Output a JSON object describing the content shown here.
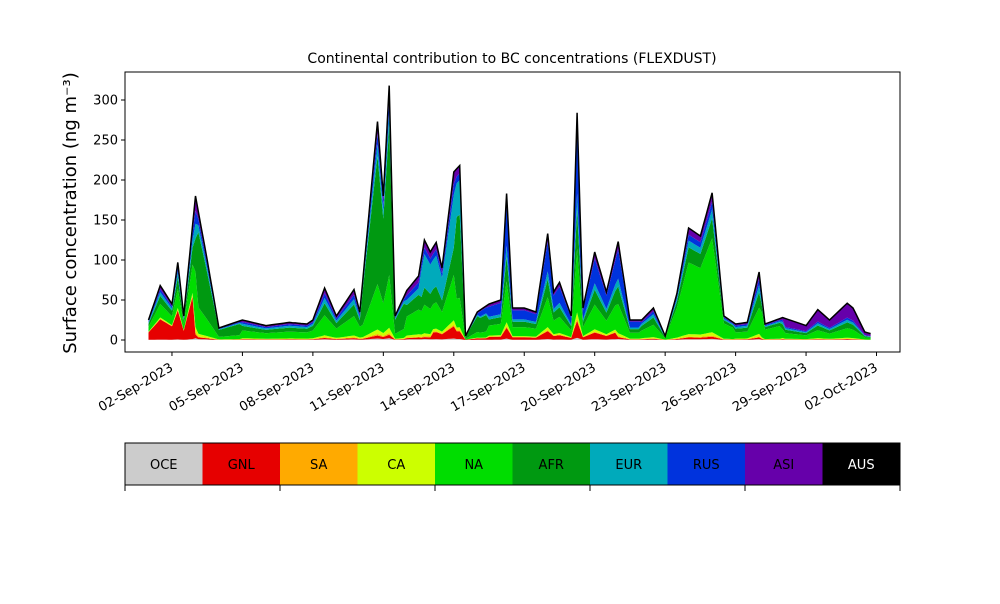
{
  "chart_data": {
    "type": "area",
    "title": "Continental contribution to BC concentrations (FLEXDUST)",
    "ylabel": "Surface concentration (ng m⁻³)",
    "xlabel": "",
    "x_start": "2023-09-01",
    "x_end": "2023-10-01",
    "xlim": [
      "2023-08-31",
      "2023-10-03"
    ],
    "ylim": [
      -15,
      335
    ],
    "stacked": true,
    "yticks": [
      0,
      50,
      100,
      150,
      200,
      250,
      300
    ],
    "xticks": [
      "02-Sep-2023",
      "05-Sep-2023",
      "08-Sep-2023",
      "11-Sep-2023",
      "14-Sep-2023",
      "17-Sep-2023",
      "20-Sep-2023",
      "23-Sep-2023",
      "26-Sep-2023",
      "29-Sep-2023",
      "02-Oct-2023"
    ],
    "xtick_dates": [
      "2023-09-02",
      "2023-09-05",
      "2023-09-08",
      "2023-09-11",
      "2023-09-14",
      "2023-09-17",
      "2023-09-20",
      "2023-09-23",
      "2023-09-26",
      "2023-09-29",
      "2023-10-02"
    ],
    "total_peaks": [
      [
        "2023-09-01",
        25
      ],
      [
        "2023-09-01T12",
        68
      ],
      [
        "2023-09-02",
        45
      ],
      [
        "2023-09-02T06",
        97
      ],
      [
        "2023-09-02T12",
        30
      ],
      [
        "2023-09-03",
        180
      ],
      [
        "2023-09-03T12",
        100
      ],
      [
        "2023-09-04",
        15
      ],
      [
        "2023-09-05",
        25
      ],
      [
        "2023-09-06",
        18
      ],
      [
        "2023-09-07",
        22
      ],
      [
        "2023-09-07T18",
        20
      ],
      [
        "2023-09-08",
        25
      ],
      [
        "2023-09-08T12",
        65
      ],
      [
        "2023-09-09",
        30
      ],
      [
        "2023-09-09T18",
        63
      ],
      [
        "2023-09-10",
        35
      ],
      [
        "2023-09-10T18",
        273
      ],
      [
        "2023-09-11",
        180
      ],
      [
        "2023-09-11T06",
        318
      ],
      [
        "2023-09-11T12",
        30
      ],
      [
        "2023-09-12",
        62
      ],
      [
        "2023-09-12T12",
        80
      ],
      [
        "2023-09-12T18",
        125
      ],
      [
        "2023-09-13",
        110
      ],
      [
        "2023-09-13T06",
        122
      ],
      [
        "2023-09-13T12",
        90
      ],
      [
        "2023-09-14",
        210
      ],
      [
        "2023-09-14T06",
        218
      ],
      [
        "2023-09-14T12",
        5
      ],
      [
        "2023-09-15",
        35
      ],
      [
        "2023-09-15T12",
        45
      ],
      [
        "2023-09-16",
        50
      ],
      [
        "2023-09-16T06",
        183
      ],
      [
        "2023-09-16T12",
        40
      ],
      [
        "2023-09-17",
        40
      ],
      [
        "2023-09-17T12",
        35
      ],
      [
        "2023-09-18",
        133
      ],
      [
        "2023-09-18T06",
        60
      ],
      [
        "2023-09-18T12",
        72
      ],
      [
        "2023-09-19",
        30
      ],
      [
        "2023-09-19T06",
        284
      ],
      [
        "2023-09-19T12",
        40
      ],
      [
        "2023-09-20",
        110
      ],
      [
        "2023-09-20T12",
        60
      ],
      [
        "2023-09-21",
        123
      ],
      [
        "2023-09-21T12",
        25
      ],
      [
        "2023-09-22",
        25
      ],
      [
        "2023-09-22T12",
        40
      ],
      [
        "2023-09-23",
        5
      ],
      [
        "2023-09-23T12",
        58
      ],
      [
        "2023-09-24",
        140
      ],
      [
        "2023-09-24T12",
        130
      ],
      [
        "2023-09-25",
        184
      ],
      [
        "2023-09-25T12",
        30
      ],
      [
        "2023-09-26",
        20
      ],
      [
        "2023-09-26T12",
        22
      ],
      [
        "2023-09-27",
        85
      ],
      [
        "2023-09-27T06",
        20
      ],
      [
        "2023-09-28",
        28
      ],
      [
        "2023-09-29",
        18
      ],
      [
        "2023-09-29T12",
        38
      ],
      [
        "2023-09-30",
        25
      ],
      [
        "2023-09-30T18",
        46
      ],
      [
        "2023-10-01",
        40
      ],
      [
        "2023-10-01T12",
        10
      ],
      [
        "2023-10-01T18",
        8
      ]
    ],
    "series": [
      {
        "name": "OCE",
        "color": "#cccccc"
      },
      {
        "name": "GNL",
        "color": "#e60000"
      },
      {
        "name": "SA",
        "color": "#ffaa00"
      },
      {
        "name": "CA",
        "color": "#ccff00"
      },
      {
        "name": "NA",
        "color": "#00dd00"
      },
      {
        "name": "AFR",
        "color": "#009911"
      },
      {
        "name": "EUR",
        "color": "#00aabb"
      },
      {
        "name": "RUS",
        "color": "#0033dd"
      },
      {
        "name": "ASI",
        "color": "#6600aa"
      },
      {
        "name": "AUS",
        "color": "#000000"
      }
    ]
  },
  "legend": {
    "items": [
      {
        "label": "OCE"
      },
      {
        "label": "GNL"
      },
      {
        "label": "SA"
      },
      {
        "label": "CA"
      },
      {
        "label": "NA"
      },
      {
        "label": "AFR"
      },
      {
        "label": "EUR"
      },
      {
        "label": "RUS"
      },
      {
        "label": "ASI"
      },
      {
        "label": "AUS"
      }
    ]
  }
}
